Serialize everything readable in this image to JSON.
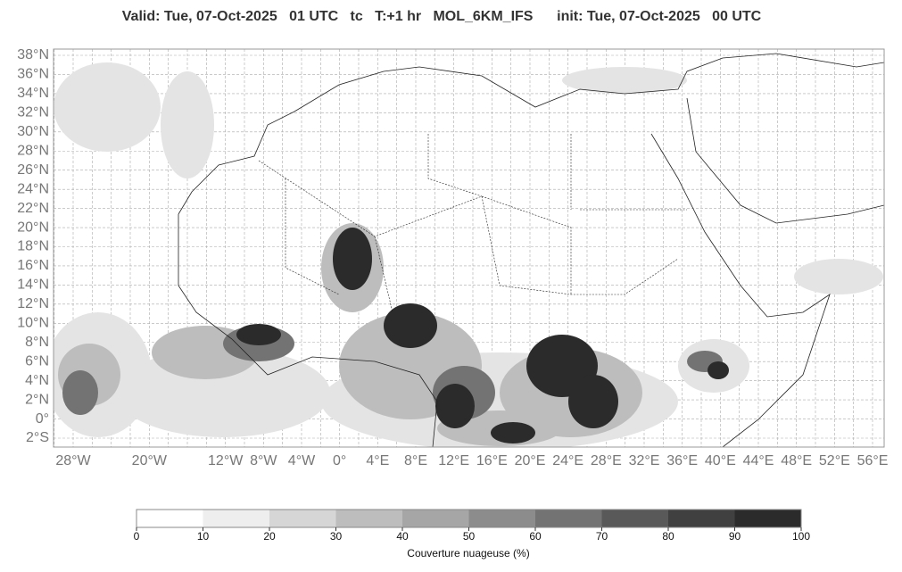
{
  "header": {
    "title": "Valid: Tue, 07-Oct-2025   01 UTC   tc   T:+1 hr   MOL_6KM_IFS      init: Tue, 07-Oct-2025   00 UTC"
  },
  "map": {
    "lat_ticks": [
      {
        "value": 38,
        "label": "38°N"
      },
      {
        "value": 36,
        "label": "36°N"
      },
      {
        "value": 34,
        "label": "34°N"
      },
      {
        "value": 32,
        "label": "32°N"
      },
      {
        "value": 30,
        "label": "30°N"
      },
      {
        "value": 28,
        "label": "28°N"
      },
      {
        "value": 26,
        "label": "26°N"
      },
      {
        "value": 24,
        "label": "24°N"
      },
      {
        "value": 22,
        "label": "22°N"
      },
      {
        "value": 20,
        "label": "20°N"
      },
      {
        "value": 18,
        "label": "18°N"
      },
      {
        "value": 16,
        "label": "16°N"
      },
      {
        "value": 14,
        "label": "14°N"
      },
      {
        "value": 12,
        "label": "12°N"
      },
      {
        "value": 10,
        "label": "10°N"
      },
      {
        "value": 8,
        "label": "8°N"
      },
      {
        "value": 6,
        "label": "6°N"
      },
      {
        "value": 4,
        "label": "4°N"
      },
      {
        "value": 2,
        "label": "2°N"
      },
      {
        "value": 0,
        "label": "0°"
      },
      {
        "value": -2,
        "label": "2°S"
      }
    ],
    "lon_ticks": [
      {
        "value": -28,
        "label": "28°W"
      },
      {
        "value": -20,
        "label": "20°W"
      },
      {
        "value": -12,
        "label": "12°W"
      },
      {
        "value": -8,
        "label": "8°W"
      },
      {
        "value": -4,
        "label": "4°W"
      },
      {
        "value": 0,
        "label": "0°"
      },
      {
        "value": 4,
        "label": "4°E"
      },
      {
        "value": 8,
        "label": "8°E"
      },
      {
        "value": 12,
        "label": "12°E"
      },
      {
        "value": 16,
        "label": "16°E"
      },
      {
        "value": 20,
        "label": "20°E"
      },
      {
        "value": 24,
        "label": "24°E"
      },
      {
        "value": 28,
        "label": "28°E"
      },
      {
        "value": 32,
        "label": "32°E"
      },
      {
        "value": 36,
        "label": "36°E"
      },
      {
        "value": 40,
        "label": "40°E"
      },
      {
        "value": 44,
        "label": "44°E"
      },
      {
        "value": 48,
        "label": "48°E"
      },
      {
        "value": 52,
        "label": "52°E"
      },
      {
        "value": 56,
        "label": "56°E"
      }
    ]
  },
  "colorbar": {
    "ticks": [
      0,
      10,
      20,
      30,
      40,
      50,
      60,
      70,
      80,
      90,
      100
    ],
    "colors": [
      "#ffffff",
      "#eeeeee",
      "#d6d6d6",
      "#bdbdbd",
      "#a6a6a6",
      "#8c8c8c",
      "#737373",
      "#595959",
      "#404040",
      "#2b2b2b"
    ],
    "label": "Couverture nuageuse (%)"
  }
}
